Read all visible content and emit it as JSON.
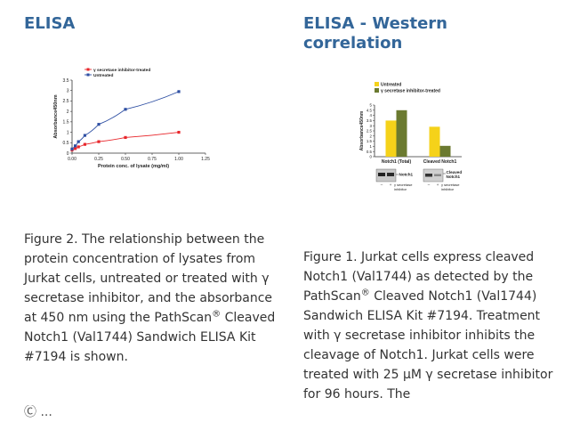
{
  "left": {
    "heading": "ELISA",
    "caption_parts": {
      "before": "Figure 2. The relationship between the protein concentration of lysates from Jurkat cells, untreated or treated with γ secretase inhibitor, and the absorbance at 450 nm using the PathScan",
      "reg": "®",
      "after": " Cleaved Notch1 (Val1744) Sandwich ELISA Kit #7194 is shown."
    },
    "cut_line": "Ⓒ ..."
  },
  "right": {
    "heading_line1": "ELISA - Western",
    "heading_line2": "correlation",
    "caption_parts": {
      "before": "Figure 1. Jurkat cells express cleaved Notch1 (Val1744) as detected by the PathScan",
      "reg": "®",
      "after": " Cleaved Notch1 (Val1744) Sandwich ELISA Kit #7194. Treatment with γ secretase inhibitor inhibits the cleavage of Notch1. Jurkat cells were treated with 25 μM γ secretase inhibitor for 96 hours. The"
    }
  },
  "chart_data": [
    {
      "type": "line",
      "xlabel": "Protein conc. of lysate (mg/ml)",
      "ylabel": "Absorbance450nm",
      "xlim": [
        0,
        1.25
      ],
      "ylim": [
        0,
        3.5
      ],
      "x_ticks": [
        "0.00",
        "0.25",
        "0.50",
        "0.75",
        "1.00",
        "1.25"
      ],
      "y_ticks": [
        "0",
        "0.5",
        "1",
        "1.5",
        "2",
        "2.5",
        "3",
        "3.5"
      ],
      "legend_position": "top-left",
      "series": [
        {
          "name": "γ secretase inhibitor-treated",
          "color": "#e8262b",
          "x": [
            0.0,
            0.03,
            0.06,
            0.12,
            0.25,
            0.5,
            1.0
          ],
          "y": [
            0.15,
            0.22,
            0.3,
            0.42,
            0.55,
            0.75,
            1.0
          ]
        },
        {
          "name": "Untreated",
          "color": "#2e4fa3",
          "x": [
            0.0,
            0.03,
            0.06,
            0.12,
            0.25,
            0.5,
            1.0
          ],
          "y": [
            0.2,
            0.35,
            0.55,
            0.85,
            1.38,
            2.1,
            2.95
          ]
        }
      ]
    },
    {
      "type": "bar",
      "categories": [
        "Notch1 (Total)",
        "Cleaved Notch1"
      ],
      "ylabel": "Absorbance450nm",
      "ylim": [
        0,
        5
      ],
      "y_ticks": [
        "0",
        "0.5",
        "1",
        "1.5",
        "2",
        "2.5",
        "3",
        "3.5",
        "4",
        "4.5",
        "5"
      ],
      "legend_position": "top-left",
      "series": [
        {
          "name": "Untreated",
          "color": "#f5d21a",
          "values": [
            3.5,
            2.9
          ]
        },
        {
          "name": "γ secretase inhibitor-treated",
          "color": "#6b7a30",
          "values": [
            4.5,
            1.05
          ]
        }
      ],
      "blot": {
        "lane_labels": [
          "–",
          "+"
        ],
        "treatment_label_line1": "γ secretase",
        "treatment_label_line2": "inhibitor",
        "band_label_total": "Notch1",
        "band_label_cleaved_line1": "Cleaved",
        "band_label_cleaved_line2": "Notch1"
      }
    }
  ]
}
